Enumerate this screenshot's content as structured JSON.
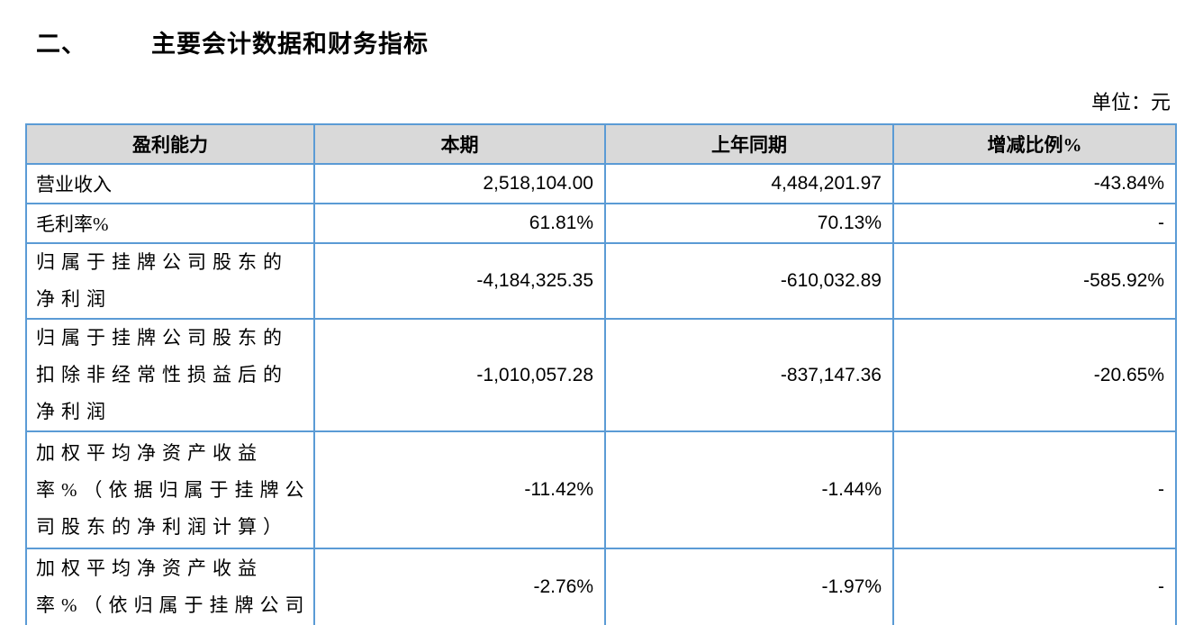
{
  "page": {
    "section_number": "二、",
    "title": "主要会计数据和财务指标",
    "unit_label": "单位：元"
  },
  "colors": {
    "table_border": "#5B9BD5",
    "header_bg": "#D9D9D9",
    "text": "#000000"
  },
  "table": {
    "columns": [
      "盈利能力",
      "本期",
      "上年同期",
      "增减比例%"
    ],
    "rows": [
      {
        "label": "营业收入",
        "current": "2,518,104.00",
        "prior": "4,484,201.97",
        "change": "-43.84%"
      },
      {
        "label": "毛利率%",
        "current": "61.81%",
        "prior": "70.13%",
        "change": "-"
      },
      {
        "label": "归属于挂牌公司股东的\n净利润",
        "current": "-4,184,325.35",
        "prior": "-610,032.89",
        "change": "-585.92%"
      },
      {
        "label": "归属于挂牌公司股东的\n扣除非经常性损益后的\n净利润",
        "current": "-1,010,057.28",
        "prior": "-837,147.36",
        "change": "-20.65%"
      },
      {
        "label": "加权平均净资产收益\n率%（依据归属于挂牌公\n司股东的净利润计算）",
        "current": "-11.42%",
        "prior": "-1.44%",
        "change": "-"
      },
      {
        "label": "加权平均净资产收益\n率%（依归属于挂牌公司",
        "current": "-2.76%",
        "prior": "-1.97%",
        "change": "-"
      }
    ]
  }
}
